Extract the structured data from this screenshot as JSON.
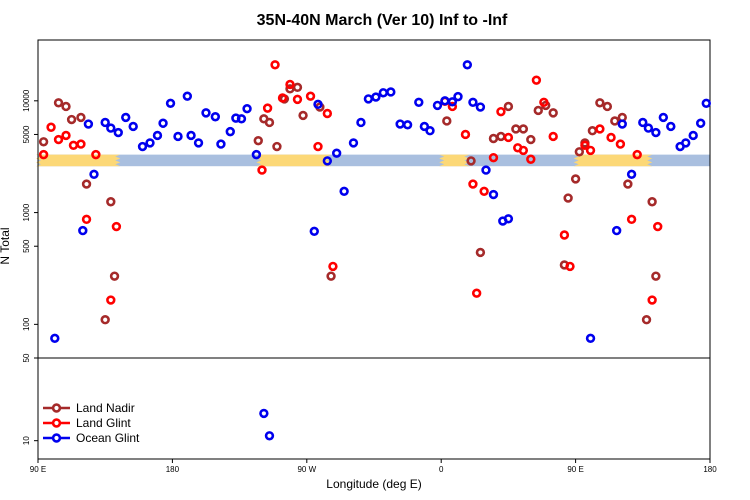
{
  "chart_data": {
    "type": "scatter",
    "title": "35N-40N March (Ver 10)   Inf to -Inf",
    "xlabel": "Longitude (deg E)",
    "ylabel": "N Total",
    "x_domain": [
      0,
      360
    ],
    "x_ticks": [
      {
        "pos": 0,
        "label": "90 E"
      },
      {
        "pos": 72,
        "label": "180"
      },
      {
        "pos": 144,
        "label": "90 W"
      },
      {
        "pos": 216,
        "label": "0"
      },
      {
        "pos": 288,
        "label": "90 E"
      },
      {
        "pos": 360,
        "label": "180"
      }
    ],
    "y_scale": "log",
    "top_panel_ylim": [
      50,
      35000
    ],
    "top_panel_yticks": [
      {
        "value": 100,
        "label": "100"
      },
      {
        "value": 500,
        "label": "500"
      },
      {
        "value": 1000,
        "label": "1000"
      },
      {
        "value": 5000,
        "label": "5000"
      },
      {
        "value": 10000,
        "label": "10000"
      }
    ],
    "bottom_panel_ylim": [
      7,
      50
    ],
    "bottom_panel_yticks": [
      {
        "value": 10,
        "label": "10"
      },
      {
        "value": 50,
        "label": "50"
      }
    ],
    "surface_band": {
      "ocean_color": "#a9bfdf",
      "land_color": "#fcd877",
      "y_range": [
        2600,
        3300
      ],
      "land_segments": [
        [
          0,
          43
        ],
        [
          118,
          156
        ],
        [
          216,
          230
        ],
        [
          288,
          328
        ]
      ]
    },
    "series": [
      {
        "name": "Land Nadir",
        "color": "#a52a2a",
        "points": [
          [
            3,
            4300
          ],
          [
            11,
            9600
          ],
          [
            15,
            8900
          ],
          [
            18,
            6800
          ],
          [
            23,
            7100
          ],
          [
            26,
            1800
          ],
          [
            36,
            110
          ],
          [
            39,
            1250
          ],
          [
            41,
            270
          ],
          [
            118,
            4400
          ],
          [
            121,
            6900
          ],
          [
            124,
            6400
          ],
          [
            128,
            3900
          ],
          [
            132,
            10400
          ],
          [
            135,
            12800
          ],
          [
            139,
            13200
          ],
          [
            142,
            7400
          ],
          [
            151,
            8800
          ],
          [
            157,
            270
          ],
          [
            219,
            6600
          ],
          [
            232,
            2900
          ],
          [
            237,
            440
          ],
          [
            244,
            4600
          ],
          [
            248,
            4800
          ],
          [
            252,
            8900
          ],
          [
            256,
            5600
          ],
          [
            260,
            5600
          ],
          [
            264,
            4500
          ],
          [
            268,
            8200
          ],
          [
            272,
            9100
          ],
          [
            276,
            7800
          ],
          [
            282,
            340
          ],
          [
            284,
            1350
          ],
          [
            288,
            2000
          ],
          [
            290,
            3500
          ],
          [
            293,
            4200
          ],
          [
            297,
            5400
          ],
          [
            301,
            9600
          ],
          [
            305,
            8900
          ],
          [
            309,
            6600
          ],
          [
            313,
            7100
          ],
          [
            316,
            1800
          ],
          [
            326,
            110
          ],
          [
            329,
            1250
          ],
          [
            331,
            270
          ]
        ]
      },
      {
        "name": "Land Glint",
        "color": "#ff0000",
        "points": [
          [
            3,
            3300
          ],
          [
            7,
            5800
          ],
          [
            11,
            4500
          ],
          [
            15,
            4900
          ],
          [
            19,
            4000
          ],
          [
            23,
            4100
          ],
          [
            26,
            870
          ],
          [
            31,
            3300
          ],
          [
            39,
            165
          ],
          [
            42,
            750
          ],
          [
            120,
            2400
          ],
          [
            123,
            8600
          ],
          [
            127,
            21000
          ],
          [
            131,
            10600
          ],
          [
            135,
            14000
          ],
          [
            139,
            10300
          ],
          [
            146,
            11000
          ],
          [
            150,
            3900
          ],
          [
            155,
            7700
          ],
          [
            158,
            330
          ],
          [
            218,
            9900
          ],
          [
            222,
            8900
          ],
          [
            229,
            5000
          ],
          [
            233,
            1800
          ],
          [
            235,
            190
          ],
          [
            239,
            1550
          ],
          [
            244,
            3100
          ],
          [
            248,
            8000
          ],
          [
            252,
            4700
          ],
          [
            257,
            3800
          ],
          [
            260,
            3600
          ],
          [
            264,
            3000
          ],
          [
            267,
            15300
          ],
          [
            271,
            9700
          ],
          [
            276,
            4800
          ],
          [
            282,
            630
          ],
          [
            285,
            330
          ],
          [
            293,
            4000
          ],
          [
            296,
            3600
          ],
          [
            301,
            5600
          ],
          [
            307,
            4700
          ],
          [
            312,
            4100
          ],
          [
            318,
            870
          ],
          [
            321,
            3300
          ],
          [
            329,
            165
          ],
          [
            332,
            750
          ]
        ]
      },
      {
        "name": "Ocean Glint",
        "color": "#0000ee",
        "points": [
          [
            9,
            75
          ],
          [
            24,
            690
          ],
          [
            27,
            6200
          ],
          [
            30,
            2200
          ],
          [
            36,
            6400
          ],
          [
            39,
            5700
          ],
          [
            43,
            5200
          ],
          [
            47,
            7100
          ],
          [
            51,
            5900
          ],
          [
            56,
            3900
          ],
          [
            60,
            4200
          ],
          [
            64,
            4900
          ],
          [
            67,
            6300
          ],
          [
            71,
            9500
          ],
          [
            75,
            4800
          ],
          [
            80,
            11000
          ],
          [
            82,
            4900
          ],
          [
            86,
            4200
          ],
          [
            90,
            7800
          ],
          [
            95,
            7200
          ],
          [
            98,
            4100
          ],
          [
            103,
            5300
          ],
          [
            106,
            7000
          ],
          [
            109,
            6900
          ],
          [
            112,
            8500
          ],
          [
            117,
            3300
          ],
          [
            121,
            17
          ],
          [
            124,
            11
          ],
          [
            148,
            680
          ],
          [
            150,
            9300
          ],
          [
            155,
            2900
          ],
          [
            160,
            3400
          ],
          [
            164,
            1550
          ],
          [
            169,
            4200
          ],
          [
            173,
            6400
          ],
          [
            177,
            10400
          ],
          [
            181,
            10800
          ],
          [
            185,
            11800
          ],
          [
            189,
            12000
          ],
          [
            194,
            6200
          ],
          [
            198,
            6100
          ],
          [
            204,
            9700
          ],
          [
            207,
            5900
          ],
          [
            210,
            5400
          ],
          [
            214,
            9100
          ],
          [
            218,
            10000
          ],
          [
            222,
            9800
          ],
          [
            225,
            10900
          ],
          [
            230,
            21000
          ],
          [
            233,
            9700
          ],
          [
            237,
            8800
          ],
          [
            240,
            2400
          ],
          [
            244,
            1450
          ],
          [
            249,
            840
          ],
          [
            252,
            880
          ],
          [
            296,
            75
          ],
          [
            310,
            690
          ],
          [
            313,
            6200
          ],
          [
            318,
            2200
          ],
          [
            324,
            6400
          ],
          [
            327,
            5700
          ],
          [
            331,
            5200
          ],
          [
            335,
            7100
          ],
          [
            339,
            5900
          ],
          [
            344,
            3900
          ],
          [
            347,
            4200
          ],
          [
            351,
            4900
          ],
          [
            355,
            6300
          ],
          [
            358,
            9500
          ]
        ]
      }
    ],
    "legend": {
      "position": "bottom-left",
      "entries": [
        "Land Nadir",
        "Land Glint",
        "Ocean Glint"
      ]
    }
  }
}
